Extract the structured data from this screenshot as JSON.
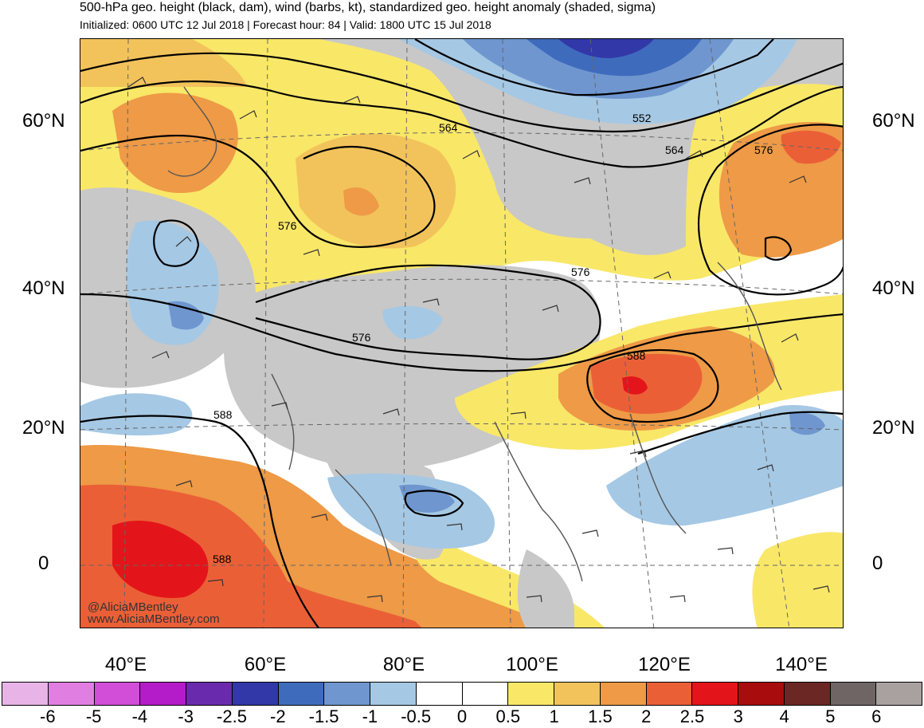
{
  "header": {
    "title": "500-hPa geo. height (black, dam), wind (barbs, kt), standardized geo. height anomaly (shaded, sigma)",
    "subtitle": "Initialized: 0600 UTC 12 Jul 2018 | Forecast hour: 84 | Valid: 1800 UTC 15 Jul 2018"
  },
  "axes": {
    "lat_left": [
      "60°N",
      "40°N",
      "20°N",
      "0"
    ],
    "lat_right": [
      "60°N",
      "40°N",
      "20°N",
      "0"
    ],
    "lon": [
      "40°E",
      "60°E",
      "80°E",
      "100°E",
      "120°E",
      "140°E"
    ]
  },
  "contour_labels": [
    "564",
    "552",
    "564",
    "576",
    "576",
    "576",
    "576",
    "588",
    "588",
    "588"
  ],
  "credit": {
    "handle": "@AliciaMBentley",
    "url": "www.AliciaMBentley.com"
  },
  "colorbar": {
    "colors": [
      "#e8b4e8",
      "#e17ee1",
      "#d24dd8",
      "#b41cc9",
      "#6a2aad",
      "#3238a8",
      "#3f6bbd",
      "#6f96cf",
      "#a5c8e4",
      "#ffffff",
      "#ffffff",
      "#f9e768",
      "#f2c35b",
      "#ee9a46",
      "#eb5f37",
      "#e3151a",
      "#a80c0c",
      "#6a2724",
      "#6f6564",
      "#a9a0a0"
    ],
    "labels": [
      "-6",
      "-5",
      "-4",
      "-3",
      "-2.5",
      "-2",
      "-1.5",
      "-1",
      "-0.5",
      "0",
      "0.5",
      "1",
      "1.5",
      "2",
      "2.5",
      "3",
      "4",
      "5",
      "6"
    ]
  },
  "shading_colors": {
    "neutral_gray": "#c8c8c8",
    "yellow": "#f9e768",
    "light_orange": "#f2c35b",
    "orange": "#ee9a46",
    "dark_orange": "#eb5f37",
    "red": "#e3151a",
    "light_blue": "#a5c8e4",
    "mid_blue": "#6f96cf",
    "blue": "#3f6bbd",
    "dark_blue": "#3238a8"
  }
}
